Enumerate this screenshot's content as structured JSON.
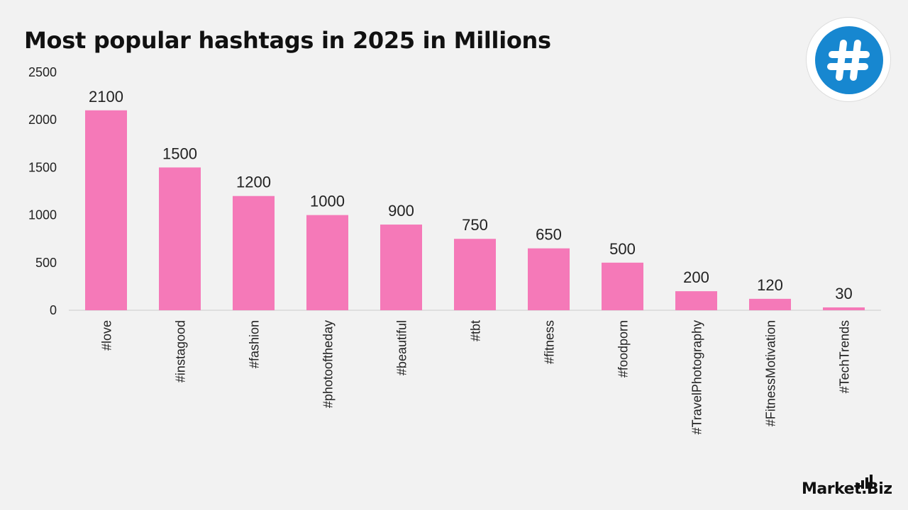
{
  "title": "Most popular hashtags in 2025 in Millions",
  "brand": {
    "name": "Market.Biz",
    "logo_icon": "bars-icon"
  },
  "badge_icon": "hashtag-icon",
  "colors": {
    "bar": "#f579b8",
    "badge": "#1787d0",
    "axis": "#cccccc",
    "text": "#222222"
  },
  "chart_data": {
    "type": "bar",
    "title": "Most popular hashtags in 2025 in Millions",
    "categories": [
      "#love",
      "#instagood",
      "#fashion",
      "#photooftheday",
      "#beautiful",
      "#tbt",
      "#fitness",
      "#foodporn",
      "#TravelPhotography",
      "#FitnessMotivation",
      "#TechTrends"
    ],
    "values": [
      2100,
      1500,
      1200,
      1000,
      900,
      750,
      650,
      500,
      200,
      120,
      30
    ],
    "data_labels": [
      "2100",
      "1500",
      "1200",
      "1000",
      "900",
      "750",
      "650",
      "500",
      "200",
      "120",
      "30"
    ],
    "yticks": [
      0,
      500,
      1000,
      1500,
      2000,
      2500
    ],
    "ytick_labels": [
      "0",
      "500",
      "1000",
      "1500",
      "2000",
      "2500"
    ],
    "ylim": [
      0,
      2500
    ],
    "xlabel": "",
    "ylabel": "",
    "grid": false,
    "legend": "none"
  }
}
